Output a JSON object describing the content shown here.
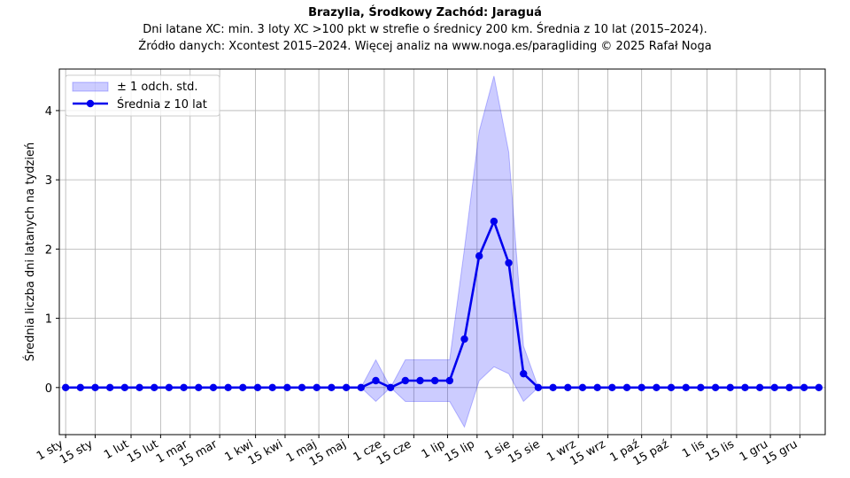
{
  "chart_data": {
    "type": "line",
    "title": "Brazylia, Środkowy Zachód: Jaraguá",
    "subtitle_lines": [
      "Dni latane XC: min. 3 loty XC >100 pkt w strefie o średnicy 200 km. Średnia z 10 lat (2015–2024).",
      "Źródło danych: Xcontest 2015–2024. Więcej analiz na www.noga.es/paragliding © 2025 Rafał Noga"
    ],
    "xlabel": "",
    "ylabel": "Średnia liczba dni latanych na tydzień",
    "x_tick_labels": [
      "1 sty",
      "15 sty",
      "1 lut",
      "15 lut",
      "1 mar",
      "15 mar",
      "1 kwi",
      "15 kwi",
      "1 maj",
      "15 maj",
      "1 cze",
      "15 cze",
      "1 lip",
      "15 lip",
      "1 sie",
      "15 sie",
      "1 wrz",
      "15 wrz",
      "1 paź",
      "15 paź",
      "1 lis",
      "15 lis",
      "1 gru",
      "15 gru"
    ],
    "x_tick_days": [
      1,
      15,
      32,
      46,
      60,
      74,
      91,
      105,
      121,
      135,
      152,
      166,
      182,
      196,
      213,
      227,
      244,
      258,
      274,
      288,
      305,
      319,
      335,
      349
    ],
    "xlim_days": [
      -2,
      361
    ],
    "y_ticks": [
      0,
      1,
      2,
      3,
      4
    ],
    "ylim": [
      -0.68,
      4.6
    ],
    "grid": true,
    "legend_position": "top-left",
    "series": [
      {
        "name": "Średnia z 10 lat",
        "color": "#0000ee",
        "weeks": [
          1,
          2,
          3,
          4,
          5,
          6,
          7,
          8,
          9,
          10,
          11,
          12,
          13,
          14,
          15,
          16,
          17,
          18,
          19,
          20,
          21,
          22,
          23,
          24,
          25,
          26,
          27,
          28,
          29,
          30,
          31,
          32,
          33,
          34,
          35,
          36,
          37,
          38,
          39,
          40,
          41,
          42,
          43,
          44,
          45,
          46,
          47,
          48,
          49,
          50,
          51,
          52
        ],
        "values": [
          0,
          0,
          0,
          0,
          0,
          0,
          0,
          0,
          0,
          0,
          0,
          0,
          0,
          0,
          0,
          0,
          0,
          0,
          0,
          0,
          0,
          0.1,
          0,
          0.1,
          0.1,
          0.1,
          0.1,
          0.7,
          1.9,
          2.4,
          1.8,
          0.2,
          0,
          0,
          0,
          0,
          0,
          0,
          0,
          0,
          0,
          0,
          0,
          0,
          0,
          0,
          0,
          0,
          0,
          0,
          0,
          0
        ]
      }
    ],
    "band": {
      "name": "± 1 odch. std.",
      "color": "#0000ff",
      "lower": [
        0,
        0,
        0,
        0,
        0,
        0,
        0,
        0,
        0,
        0,
        0,
        0,
        0,
        0,
        0,
        0,
        0,
        0,
        0,
        0,
        0,
        -0.2,
        0,
        -0.2,
        -0.2,
        -0.2,
        -0.2,
        -0.57,
        0.1,
        0.3,
        0.2,
        -0.2,
        0,
        0,
        0,
        0,
        0,
        0,
        0,
        0,
        0,
        0,
        0,
        0,
        0,
        0,
        0,
        0,
        0,
        0,
        0,
        0
      ],
      "upper": [
        0,
        0,
        0,
        0,
        0,
        0,
        0,
        0,
        0,
        0,
        0,
        0,
        0,
        0,
        0,
        0,
        0,
        0,
        0,
        0,
        0,
        0.4,
        0,
        0.4,
        0.4,
        0.4,
        0.4,
        2.0,
        3.7,
        4.5,
        3.4,
        0.6,
        0,
        0,
        0,
        0,
        0,
        0,
        0,
        0,
        0,
        0,
        0,
        0,
        0,
        0,
        0,
        0,
        0,
        0,
        0,
        0
      ]
    }
  }
}
